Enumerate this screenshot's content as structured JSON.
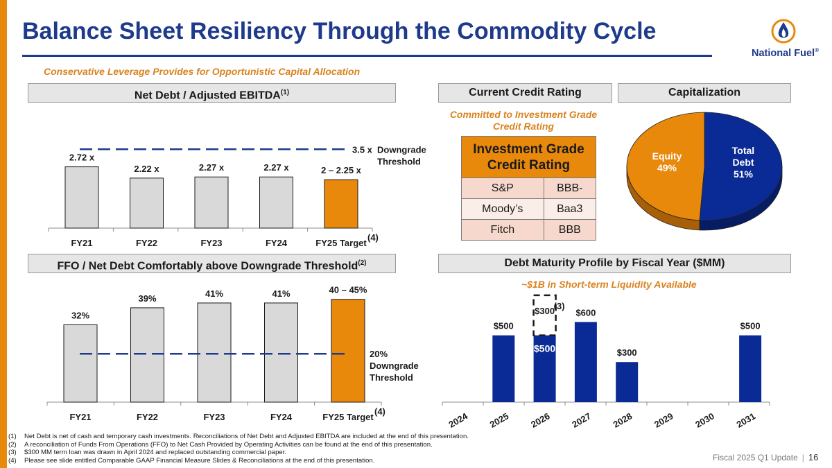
{
  "title": "Balance Sheet Resiliency Through the Commodity Cycle",
  "subtitle": "Conservative Leverage Provides for Opportunistic Capital Allocation",
  "logo": {
    "text": "National Fuel",
    "trademark": "®",
    "icon": "flame-logo-icon"
  },
  "colors": {
    "brand_blue": "#1E3A8A",
    "orange": "#E8890C",
    "gray_bar": "#D9D9D9",
    "bar_blue": "#0A2B96"
  },
  "sections": {
    "net_debt_header": "Net Debt / Adjusted EBITDA",
    "net_debt_header_sup": "(1)",
    "ffo_header": "FFO / Net Debt Comfortably above Downgrade Threshold",
    "ffo_header_sup": "(2)",
    "credit_header": "Current Credit Rating",
    "cap_header": "Capitalization",
    "maturity_header": "Debt Maturity Profile by Fiscal Year ($MM)"
  },
  "credit": {
    "note_line1": "Committed to Investment Grade",
    "note_line2": "Credit Rating",
    "table_title_line1": "Investment Grade",
    "table_title_line2": "Credit Rating",
    "rows": [
      {
        "agency": "S&P",
        "rating": "BBB-"
      },
      {
        "agency": "Moody’s",
        "rating": "Baa3"
      },
      {
        "agency": "Fitch",
        "rating": "BBB"
      }
    ]
  },
  "liquidity_note": "~$1B in Short-term Liquidity Available",
  "chart_data": [
    {
      "type": "bar",
      "title": "Net Debt / Adjusted EBITDA",
      "categories": [
        "FY21",
        "FY22",
        "FY23",
        "FY24",
        "FY25 Target"
      ],
      "values": [
        2.72,
        2.22,
        2.27,
        2.27,
        2.15
      ],
      "labels": [
        "2.72 x",
        "2.22 x",
        "2.27 x",
        "2.27 x",
        "2 – 2.25 x"
      ],
      "highlight_index": 4,
      "footnote_marker": "(4)",
      "threshold": {
        "value": 3.5,
        "label": "3.5 x",
        "text_line1": "Downgrade",
        "text_line2": "Threshold"
      },
      "ylim": [
        0,
        4
      ]
    },
    {
      "type": "bar",
      "title": "FFO / Net Debt",
      "categories": [
        "FY21",
        "FY22",
        "FY23",
        "FY24",
        "FY25 Target"
      ],
      "values": [
        32,
        39,
        41,
        41,
        42.5
      ],
      "labels": [
        "32%",
        "39%",
        "41%",
        "41%",
        "40 – 45%"
      ],
      "highlight_index": 4,
      "footnote_marker": "(4)",
      "threshold": {
        "value": 20,
        "label": "20%",
        "text_line1": "Downgrade",
        "text_line2": "Threshold"
      },
      "ylim": [
        0,
        45
      ]
    },
    {
      "type": "pie",
      "title": "Capitalization",
      "slices": [
        {
          "name_line1": "Total",
          "name_line2": "Debt",
          "value": 51,
          "label": "51%",
          "color": "#0A2B96"
        },
        {
          "name_line1": "Equity",
          "name_line2": "",
          "value": 49,
          "label": "49%",
          "color": "#E8890C"
        }
      ]
    },
    {
      "type": "bar",
      "title": "Debt Maturity Profile by Fiscal Year ($MM)",
      "categories": [
        "2024",
        "2025",
        "2026",
        "2027",
        "2028",
        "2029",
        "2030",
        "2031"
      ],
      "values": [
        0,
        500,
        500,
        600,
        300,
        0,
        0,
        500
      ],
      "labels": [
        "",
        "$500",
        "$500",
        "$600",
        "$300",
        "",
        "",
        "$500"
      ],
      "stacked_dashed": {
        "index": 2,
        "value": 300,
        "label": "$300",
        "footnote": "(3)"
      },
      "ylim": [
        0,
        820
      ]
    }
  ],
  "footnotes": [
    {
      "num": "(1)",
      "text": "Net Debt is net of cash and temporary cash investments. Reconciliations of Net Debt and Adjusted EBITDA are included at the end of this presentation."
    },
    {
      "num": "(2)",
      "text": "A reconciliation of Funds From Operations (FFO) to Net Cash Provided by Operating Activities can be found at the end of this presentation."
    },
    {
      "num": "(3)",
      "text": "$300 MM term loan was drawn in April 2024 and replaced outstanding commercial paper."
    },
    {
      "num": "(4)",
      "text": "Please see slide entitled Comparable GAAP Financial Measure Slides & Reconciliations at the end of this presentation."
    }
  ],
  "footer": {
    "text": "Fiscal 2025 Q1 Update",
    "separator": "|",
    "page": "16"
  }
}
